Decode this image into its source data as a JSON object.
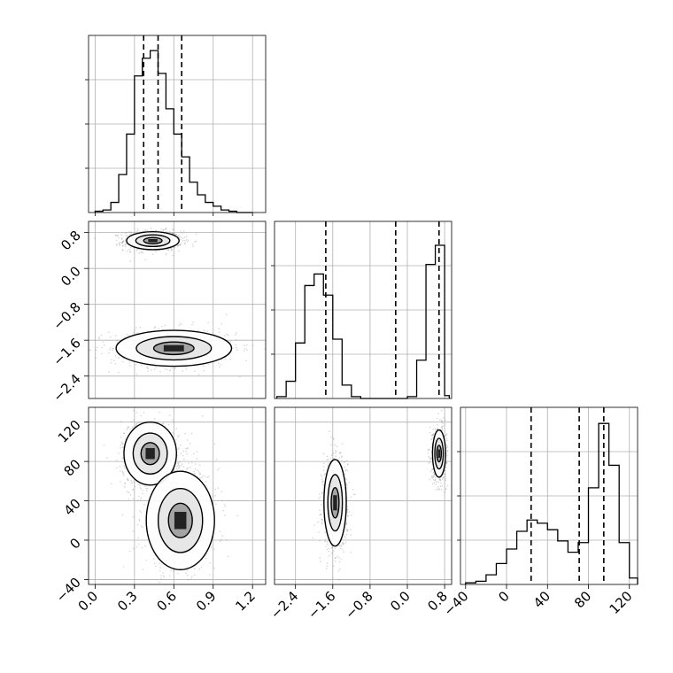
{
  "chart_data": [
    {
      "type": "histogram",
      "panel": "param1-marginal",
      "xlim": [
        -0.05,
        1.3
      ],
      "bins": [
        0.0,
        0.06,
        0.12,
        0.18,
        0.24,
        0.3,
        0.36,
        0.42,
        0.48,
        0.54,
        0.6,
        0.66,
        0.72,
        0.78,
        0.84,
        0.9,
        0.96,
        1.02,
        1.08,
        1.14,
        1.2
      ],
      "counts": [
        1,
        2,
        8,
        30,
        62,
        108,
        122,
        128,
        110,
        82,
        62,
        44,
        24,
        14,
        8,
        5,
        2,
        1,
        0,
        0
      ],
      "ymax": 140,
      "quantile_lines": [
        0.37,
        0.48,
        0.66
      ],
      "grid": true
    },
    {
      "type": "histogram",
      "panel": "param2-marginal",
      "xlim": [
        -2.85,
        0.95
      ],
      "bins": [
        -2.8,
        -2.6,
        -2.4,
        -2.2,
        -2.0,
        -1.8,
        -1.6,
        -1.4,
        -1.2,
        -1.0,
        -0.8,
        -0.6,
        -0.4,
        -0.2,
        0.0,
        0.2,
        0.4,
        0.6,
        0.8,
        0.9
      ],
      "counts": [
        2,
        18,
        58,
        118,
        130,
        108,
        62,
        14,
        2,
        0,
        0,
        0,
        0,
        0,
        2,
        40,
        140,
        160,
        3
      ],
      "ymax": 185,
      "quantile_lines": [
        -1.75,
        -0.25,
        0.68
      ],
      "grid": true
    },
    {
      "type": "histogram",
      "panel": "param3-marginal",
      "xlim": [
        -45,
        128
      ],
      "bins": [
        -40,
        -30,
        -20,
        -10,
        0,
        10,
        20,
        30,
        40,
        50,
        60,
        70,
        80,
        90,
        100,
        110,
        120,
        128
      ],
      "counts": [
        1,
        2,
        6,
        13,
        22,
        33,
        40,
        38,
        34,
        27,
        20,
        26,
        60,
        100,
        74,
        26,
        4
      ],
      "ymax": 110,
      "quantile_lines": [
        24,
        71,
        95
      ],
      "grid": true
    },
    {
      "type": "scatter-density",
      "panel": "param1-vs-param2",
      "xlim": [
        -0.05,
        1.3
      ],
      "ylim": [
        -2.9,
        1.05
      ],
      "clusters": [
        {
          "x_center": 0.44,
          "y_center": 0.62,
          "x_sd": 0.1,
          "y_sd": 0.1,
          "weight": 0.55
        },
        {
          "x_center": 0.6,
          "y_center": -1.78,
          "x_sd": 0.22,
          "y_sd": 0.2,
          "weight": 0.45
        }
      ],
      "grid": true
    },
    {
      "type": "scatter-density",
      "panel": "param1-vs-param3",
      "xlim": [
        -0.05,
        1.3
      ],
      "ylim": [
        -45,
        135
      ],
      "clusters": [
        {
          "x_center": 0.42,
          "y_center": 88,
          "x_sd": 0.1,
          "y_sd": 16,
          "weight": 0.5
        },
        {
          "x_center": 0.65,
          "y_center": 20,
          "x_sd": 0.13,
          "y_sd": 25,
          "weight": 0.5
        }
      ],
      "grid": true
    },
    {
      "type": "scatter-density",
      "panel": "param2-vs-param3",
      "xlim": [
        -2.85,
        0.95
      ],
      "ylim": [
        -45,
        135
      ],
      "clusters": [
        {
          "x_center": -1.55,
          "y_center": 38,
          "x_sd": 0.12,
          "y_sd": 22,
          "weight": 0.5
        },
        {
          "x_center": 0.68,
          "y_center": 88,
          "x_sd": 0.07,
          "y_sd": 12,
          "weight": 0.5
        }
      ],
      "grid": true
    }
  ],
  "tick_labels": {
    "param1": [
      "0.0",
      "0.3",
      "0.6",
      "0.9",
      "1.2"
    ],
    "param2": [
      "−2.4",
      "−1.6",
      "−0.8",
      "0.0",
      "0.8"
    ],
    "param3": [
      "−40",
      "0",
      "40",
      "80",
      "120"
    ]
  }
}
